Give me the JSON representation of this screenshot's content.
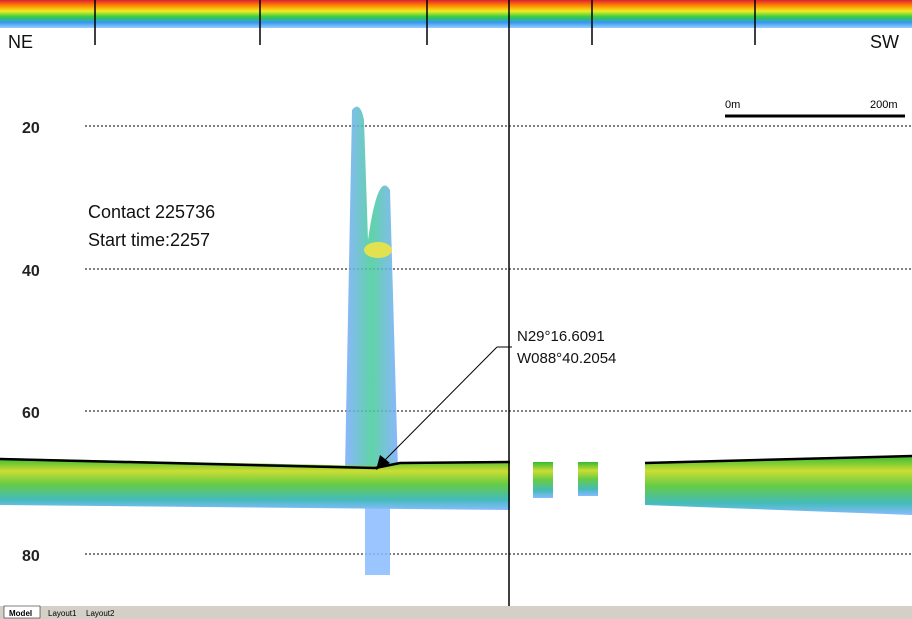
{
  "header": {
    "left": "NE",
    "right": "SW"
  },
  "scale_bar": {
    "start": "0m",
    "end": "200m"
  },
  "depth_labels": [
    "20",
    "40",
    "60",
    "80"
  ],
  "contact": {
    "name": "Contact 225736",
    "start": "Start time:2257"
  },
  "position": {
    "lat": "N29°16.6091",
    "lon": "W088°40.2054"
  },
  "tabs": [
    "Model",
    "Layout1",
    "Layout2"
  ]
}
